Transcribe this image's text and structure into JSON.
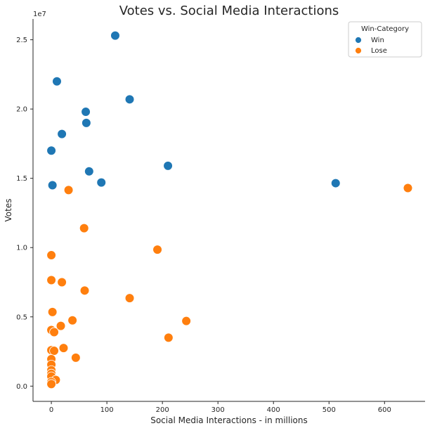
{
  "chart_data": {
    "type": "scatter",
    "title": "Votes vs. Social Media Interactions",
    "xlabel": "Social Media Interactions - in millions",
    "ylabel": "Votes",
    "offset_text": "1e7",
    "xlim": [
      -33,
      673
    ],
    "ylim": [
      -1100000,
      26500000
    ],
    "x_ticks": [
      0,
      100,
      200,
      300,
      400,
      500,
      600
    ],
    "x_tick_labels": [
      "0",
      "100",
      "200",
      "300",
      "400",
      "500",
      "600"
    ],
    "y_ticks": [
      0,
      5000000,
      10000000,
      15000000,
      20000000,
      25000000
    ],
    "y_tick_labels": [
      "0.0",
      "0.5",
      "1.0",
      "1.5",
      "2.0",
      "2.5"
    ],
    "grid": false,
    "legend": {
      "title": "Win-Category",
      "placement": "top-right",
      "entries": [
        "Win",
        "Lose"
      ]
    },
    "series": [
      {
        "name": "Win",
        "color": "#1f77b4",
        "points": [
          {
            "x": 115,
            "y": 25300000
          },
          {
            "x": 10,
            "y": 22000000
          },
          {
            "x": 141,
            "y": 20700000
          },
          {
            "x": 62,
            "y": 19800000
          },
          {
            "x": 63,
            "y": 19000000
          },
          {
            "x": 19,
            "y": 18200000
          },
          {
            "x": 0,
            "y": 17000000
          },
          {
            "x": 210,
            "y": 15900000
          },
          {
            "x": 68,
            "y": 15500000
          },
          {
            "x": 90,
            "y": 14700000
          },
          {
            "x": 2,
            "y": 14500000
          },
          {
            "x": 512,
            "y": 14650000
          }
        ]
      },
      {
        "name": "Lose",
        "color": "#ff7f0e",
        "points": [
          {
            "x": 642,
            "y": 14300000
          },
          {
            "x": 31,
            "y": 14150000
          },
          {
            "x": 59,
            "y": 11400000
          },
          {
            "x": 191,
            "y": 9850000
          },
          {
            "x": 0,
            "y": 9450000
          },
          {
            "x": 0,
            "y": 7650000
          },
          {
            "x": 19,
            "y": 7500000
          },
          {
            "x": 60,
            "y": 6900000
          },
          {
            "x": 141,
            "y": 6350000
          },
          {
            "x": 2,
            "y": 5350000
          },
          {
            "x": 243,
            "y": 4700000
          },
          {
            "x": 38,
            "y": 4750000
          },
          {
            "x": 17,
            "y": 4350000
          },
          {
            "x": 0,
            "y": 4050000
          },
          {
            "x": 5,
            "y": 3900000
          },
          {
            "x": 211,
            "y": 3500000
          },
          {
            "x": 22,
            "y": 2750000
          },
          {
            "x": 0,
            "y": 2600000
          },
          {
            "x": 5,
            "y": 2550000
          },
          {
            "x": 44,
            "y": 2050000
          },
          {
            "x": 0,
            "y": 1950000
          },
          {
            "x": 0,
            "y": 1550000
          },
          {
            "x": 0,
            "y": 1150000
          },
          {
            "x": 0,
            "y": 900000
          },
          {
            "x": 0,
            "y": 700000
          },
          {
            "x": 8,
            "y": 450000
          },
          {
            "x": 0,
            "y": 300000
          },
          {
            "x": 0,
            "y": 150000
          }
        ]
      }
    ]
  }
}
